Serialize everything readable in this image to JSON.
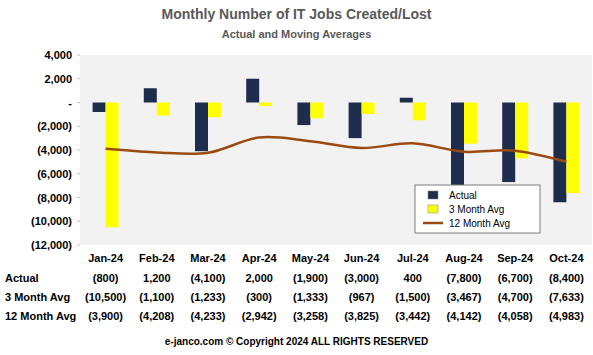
{
  "chart_data": {
    "type": "bar",
    "title": "Monthly Number of IT Jobs Created/Lost",
    "subtitle": "Actual and Moving Averages",
    "footer": "e-janco.com © Copyright 2024 ALL RIGHTS RESERVED",
    "categories": [
      "Jan-24",
      "Feb-24",
      "Mar-24",
      "Apr-24",
      "May-24",
      "Jun-24",
      "Jul-24",
      "Aug-24",
      "Sep-24",
      "Oct-24"
    ],
    "ylim": [
      -12000,
      4000
    ],
    "yticks": [
      {
        "value": 4000,
        "label": "4,000"
      },
      {
        "value": 2000,
        "label": "2,000"
      },
      {
        "value": 0,
        "label": "-"
      },
      {
        "value": -2000,
        "label": "(2,000)"
      },
      {
        "value": -4000,
        "label": "(4,000)"
      },
      {
        "value": -6000,
        "label": "(6,000)"
      },
      {
        "value": -8000,
        "label": "(8,000)"
      },
      {
        "value": -10000,
        "label": "(10,000)"
      },
      {
        "value": -12000,
        "label": "(12,000)"
      }
    ],
    "grid": false,
    "legend": "right",
    "series": [
      {
        "name": "Actual",
        "color": "#1f2d4d",
        "values": [
          -800,
          1200,
          -4100,
          2000,
          -1900,
          -3000,
          400,
          -7800,
          -6700,
          -8400
        ],
        "value_labels": [
          "(800)",
          "1,200",
          "(4,100)",
          "2,000",
          "(1,900)",
          "(3,000)",
          "400",
          "(7,800)",
          "(6,700)",
          "(8,400)"
        ]
      },
      {
        "name": "3 Month Avg",
        "color": "#ffff00",
        "values": [
          -10500,
          -1100,
          -1233,
          -300,
          -1333,
          -967,
          -1500,
          -3467,
          -4700,
          -7633
        ],
        "value_labels": [
          "(10,500)",
          "(1,100)",
          "(1,233)",
          "(300)",
          "(1,333)",
          "(967)",
          "(1,500)",
          "(3,467)",
          "(4,700)",
          "(7,633)"
        ]
      },
      {
        "name": "12 Month Avg",
        "type": "line",
        "line_style": "solid",
        "color": "#9b4a11",
        "values": [
          -3900,
          -4208,
          -4233,
          -2942,
          -3258,
          -3825,
          -3442,
          -4142,
          -4058,
          -4983
        ],
        "value_labels": [
          "(3,900)",
          "(4,208)",
          "(4,233)",
          "(2,942)",
          "(3,258)",
          "(3,825)",
          "(3,442)",
          "(4,142)",
          "(4,058)",
          "(4,983)"
        ]
      }
    ]
  }
}
